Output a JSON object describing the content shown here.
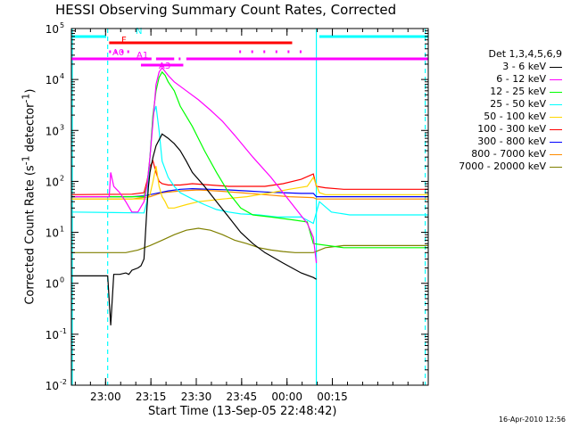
{
  "chart_data": {
    "type": "line",
    "title": "HESSI Observing Summary Count Rates, Corrected",
    "xlabel": "Start Time (13-Sep-05 22:48:42)",
    "ylabel": "Corrected Count Rate (s⁻¹ detector⁻¹)",
    "y_scale": "log",
    "ylim": [
      0.01,
      100000
    ],
    "x_unit": "minutes since 22:48:42",
    "xlim": [
      0,
      118
    ],
    "x_ticks": [
      {
        "x": 11.3,
        "label": "23:00"
      },
      {
        "x": 26.3,
        "label": "23:15"
      },
      {
        "x": 41.3,
        "label": "23:30"
      },
      {
        "x": 56.3,
        "label": "23:45"
      },
      {
        "x": 71.3,
        "label": "00:00"
      },
      {
        "x": 86.3,
        "label": "00:15"
      }
    ],
    "y_ticks": [
      {
        "exp": -2,
        "label": "10"
      },
      {
        "exp": -1,
        "label": "10"
      },
      {
        "exp": 0,
        "label": "10"
      },
      {
        "exp": 1,
        "label": "10"
      },
      {
        "exp": 2,
        "label": "10"
      },
      {
        "exp": 3,
        "label": "10"
      },
      {
        "exp": 4,
        "label": "10"
      },
      {
        "exp": 5,
        "label": "10"
      }
    ],
    "legend_title": "Det 1,3,4,5,6,9",
    "legend_placement": "right",
    "series": [
      {
        "name": "3 - 6 keV",
        "color": "#000000",
        "x": [
          0,
          12,
          13,
          14,
          16,
          18,
          19,
          20,
          22,
          23,
          24,
          25,
          25.5,
          26,
          27,
          28,
          30,
          32,
          34,
          36,
          38,
          40,
          44,
          48,
          52,
          56,
          60,
          64,
          70,
          76,
          80,
          81
        ],
        "y": [
          1.4,
          1.4,
          0.15,
          1.5,
          1.5,
          1.6,
          1.5,
          1.8,
          2.0,
          2.2,
          3.0,
          30,
          80,
          150,
          300,
          500,
          850,
          700,
          550,
          400,
          250,
          150,
          80,
          40,
          20,
          10,
          6,
          4,
          2.5,
          1.6,
          1.3,
          1.2
        ]
      },
      {
        "name": "6 - 12 keV",
        "color": "#ff00ff",
        "x": [
          0,
          12.5,
          13,
          14,
          16,
          18,
          20,
          22,
          24,
          25,
          26,
          27,
          28,
          29,
          30,
          32,
          34,
          38,
          42,
          46,
          50,
          54,
          60,
          66,
          70,
          74,
          78,
          80,
          81
        ],
        "y": [
          50,
          50,
          150,
          80,
          60,
          40,
          25,
          25,
          40,
          80,
          300,
          1500,
          8000,
          14000,
          17000,
          12000,
          9000,
          6000,
          4000,
          2500,
          1500,
          800,
          300,
          120,
          60,
          30,
          15,
          8,
          2.5
        ]
      },
      {
        "name": "12 - 25 keV",
        "color": "#00ff00",
        "x": [
          0,
          24,
          25,
          26,
          27,
          28,
          29,
          30,
          31,
          32,
          34,
          36,
          40,
          44,
          48,
          52,
          56,
          60,
          66,
          72,
          78,
          80,
          90,
          104,
          118
        ],
        "y": [
          50,
          50,
          80,
          300,
          2000,
          6000,
          11000,
          14000,
          12000,
          9000,
          6000,
          3000,
          1200,
          400,
          150,
          60,
          30,
          22,
          20,
          18,
          16,
          6,
          5,
          5,
          5
        ]
      },
      {
        "name": "25 - 50 keV",
        "color": "#00ffff",
        "x": [
          0,
          24,
          25,
          26,
          27,
          28,
          29,
          30,
          32,
          34,
          36,
          40,
          44,
          48,
          52,
          56,
          62,
          68,
          76,
          80,
          82,
          86,
          92,
          104,
          118
        ],
        "y": [
          25,
          24,
          40,
          300,
          2000,
          3000,
          1000,
          250,
          120,
          80,
          60,
          45,
          35,
          28,
          25,
          23,
          22,
          20,
          20,
          15,
          40,
          25,
          22,
          22,
          22
        ]
      },
      {
        "name": "50 - 100 keV",
        "color": "#ffd700",
        "x": [
          0,
          25,
          26,
          27,
          28,
          29,
          30,
          31,
          32,
          34,
          38,
          42,
          50,
          58,
          66,
          72,
          78,
          80,
          82,
          84,
          90,
          104,
          118
        ],
        "y": [
          45,
          45,
          55,
          100,
          200,
          80,
          50,
          40,
          30,
          30,
          35,
          40,
          45,
          50,
          60,
          70,
          80,
          120,
          60,
          55,
          55,
          55,
          55
        ]
      },
      {
        "name": "100 - 300 keV",
        "color": "#ff0000",
        "x": [
          0,
          20,
          24,
          25,
          26,
          27,
          28,
          29,
          30,
          32,
          36,
          40,
          46,
          52,
          58,
          64,
          70,
          76,
          80,
          81,
          84,
          90,
          104,
          118
        ],
        "y": [
          55,
          56,
          60,
          100,
          200,
          250,
          150,
          100,
          90,
          85,
          85,
          90,
          85,
          80,
          80,
          80,
          90,
          110,
          140,
          80,
          75,
          70,
          70,
          70
        ]
      },
      {
        "name": "300 - 800 keV",
        "color": "#0000ff",
        "x": [
          0,
          20,
          24,
          28,
          32,
          36,
          40,
          46,
          52,
          58,
          64,
          70,
          76,
          80,
          81,
          84,
          90,
          104,
          118
        ],
        "y": [
          50,
          50,
          52,
          58,
          65,
          70,
          72,
          70,
          68,
          65,
          62,
          60,
          58,
          58,
          50,
          50,
          50,
          50,
          50
        ]
      },
      {
        "name": "800 - 7000 keV",
        "color": "#ff8c00",
        "x": [
          0,
          20,
          26,
          30,
          36,
          42,
          48,
          56,
          64,
          72,
          80,
          81,
          90,
          104,
          118
        ],
        "y": [
          45,
          45,
          50,
          60,
          65,
          68,
          65,
          60,
          55,
          50,
          48,
          45,
          45,
          45,
          45
        ]
      },
      {
        "name": "7000 - 20000 keV",
        "color": "#808000",
        "x": [
          0,
          12,
          14,
          18,
          22,
          26,
          30,
          34,
          38,
          42,
          46,
          50,
          54,
          58,
          62,
          66,
          70,
          74,
          78,
          80,
          84,
          90,
          104,
          118
        ],
        "y": [
          4,
          4,
          4,
          4,
          4.5,
          5.5,
          7,
          9,
          11,
          12,
          11,
          9,
          7,
          6,
          5,
          4.5,
          4.2,
          4,
          4,
          4,
          5,
          5.5,
          5.5,
          5.5
        ]
      }
    ],
    "state_bars": [
      {
        "label": "N",
        "color": "#00ffff",
        "segments": [
          [
            0,
            11.5
          ],
          [
            82,
            118
          ]
        ]
      },
      {
        "label": "F",
        "color": "#ff0000",
        "segments": [
          [
            12.5,
            73
          ]
        ]
      },
      {
        "label": "A0",
        "color": "#ff00ff",
        "segments": [
          [
            12.5,
            12.9
          ],
          [
            14.5,
            14.9
          ],
          [
            16.5,
            16.9
          ],
          [
            18.5,
            18.9
          ],
          [
            55.5,
            55.9
          ],
          [
            59.5,
            59.9
          ],
          [
            63.5,
            63.9
          ],
          [
            67.5,
            67.9
          ],
          [
            71.5,
            71.9
          ],
          [
            75.5,
            75.9
          ]
        ]
      },
      {
        "label": "A1",
        "color": "#ff00ff",
        "segments": [
          [
            0,
            26.5
          ],
          [
            28,
            34
          ],
          [
            35.5,
            36
          ],
          [
            38,
            118
          ]
        ]
      },
      {
        "label": "A3",
        "color": "#ff00ff",
        "segments": [
          [
            23,
            37
          ]
        ]
      }
    ],
    "vertical_markers": [
      {
        "x": 12,
        "style": "dashed",
        "color": "#00ffff"
      },
      {
        "x": 81,
        "style": "solid",
        "color": "#00ffff"
      },
      {
        "x": 117,
        "style": "dashed",
        "color": "#00ffff"
      },
      {
        "x": 0,
        "style": "solid",
        "color": "#00ffff"
      }
    ],
    "timestamp": "16-Apr-2010 12:56"
  }
}
